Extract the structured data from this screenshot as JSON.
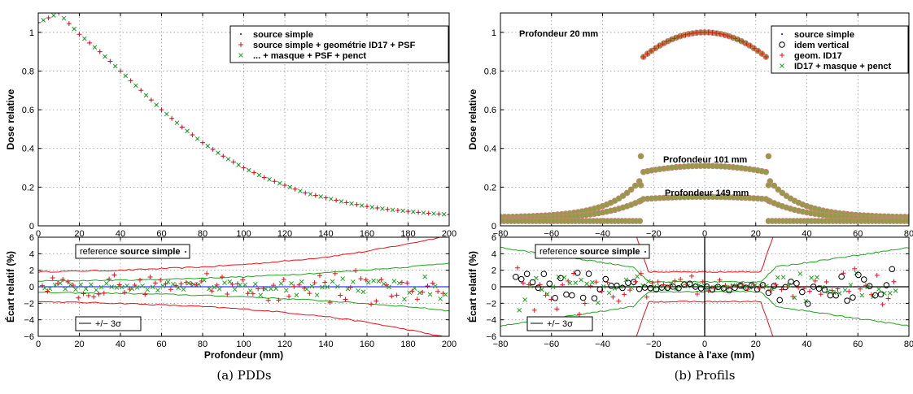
{
  "captions": {
    "a": "(a) PDDs",
    "b": "(b) Profils"
  },
  "colors": {
    "series1": "#0000ff",
    "series2": "#e8101a",
    "series3": "#21a321",
    "band_red": "#e8101a",
    "band_green": "#21a321",
    "open_circle": "#000000",
    "filled_circle_fill": "#8f9e40",
    "filled_circle_edge": "#d08080"
  },
  "chart_data": [
    {
      "id": "pdd-top",
      "type": "scatter",
      "xlabel": "",
      "ylabel": "Dose relative",
      "xlim": [
        0,
        200
      ],
      "ylim": [
        0,
        1.1
      ],
      "xticks": [
        "0",
        "20",
        "40",
        "60",
        "80",
        "100",
        "120",
        "140",
        "160",
        "180",
        "200"
      ],
      "yticks": [
        "0",
        "0.2",
        "0.4",
        "0.6",
        "0.8",
        "1"
      ],
      "grid": true,
      "legend_position": "top-right",
      "legend": [
        "source simple",
        "source simple + geométrie ID17 + PSF",
        "... + masque + PSF + penct"
      ],
      "pdd_points": [
        [
          0,
          1.05
        ],
        [
          10,
          1.1
        ],
        [
          20,
          0.99
        ],
        [
          30,
          0.9
        ],
        [
          40,
          0.8
        ],
        [
          50,
          0.7
        ],
        [
          60,
          0.6
        ],
        [
          70,
          0.51
        ],
        [
          80,
          0.43
        ],
        [
          90,
          0.36
        ],
        [
          100,
          0.3
        ],
        [
          110,
          0.25
        ],
        [
          120,
          0.21
        ],
        [
          130,
          0.17
        ],
        [
          140,
          0.145
        ],
        [
          150,
          0.12
        ],
        [
          160,
          0.1
        ],
        [
          170,
          0.085
        ],
        [
          180,
          0.075
        ],
        [
          190,
          0.065
        ],
        [
          200,
          0.058
        ]
      ]
    },
    {
      "id": "pdd-bottom",
      "type": "scatter",
      "xlabel": "Profondeur (mm)",
      "ylabel": "Écart relatif (%)",
      "xlim": [
        0,
        200
      ],
      "ylim": [
        -6,
        6
      ],
      "xticks": [
        "0",
        "20",
        "40",
        "60",
        "80",
        "100",
        "120",
        "140",
        "160",
        "180",
        "200"
      ],
      "yticks": [
        "−6",
        "−4",
        "−2",
        "0",
        "2",
        "4",
        "6"
      ],
      "grid": true,
      "reference_label_prefix": "reference",
      "reference_label_bold": "source simple",
      "sigma_label": "+/− 3σ",
      "red_band": [
        [
          0,
          1.8
        ],
        [
          20,
          1.9
        ],
        [
          40,
          2.0
        ],
        [
          60,
          2.2
        ],
        [
          80,
          2.4
        ],
        [
          100,
          2.7
        ],
        [
          120,
          3.1
        ],
        [
          140,
          3.6
        ],
        [
          160,
          4.3
        ],
        [
          180,
          5.2
        ],
        [
          200,
          6.2
        ]
      ],
      "green_band": [
        [
          0,
          0.7
        ],
        [
          20,
          0.75
        ],
        [
          40,
          0.8
        ],
        [
          60,
          0.9
        ],
        [
          80,
          1.05
        ],
        [
          100,
          1.2
        ],
        [
          120,
          1.45
        ],
        [
          140,
          1.7
        ],
        [
          160,
          2.05
        ],
        [
          180,
          2.4
        ],
        [
          200,
          2.9
        ]
      ]
    },
    {
      "id": "profils-top",
      "type": "scatter",
      "xlabel": "",
      "ylabel": "Dose relative",
      "xlim": [
        -80,
        80
      ],
      "ylim": [
        0,
        1.1
      ],
      "xticks": [
        "−80",
        "−60",
        "−40",
        "−20",
        "0",
        "20",
        "40",
        "60",
        "80"
      ],
      "yticks": [
        "0",
        "0.2",
        "0.4",
        "0.6",
        "0.8",
        "1"
      ],
      "grid": true,
      "legend_position": "top-right",
      "legend": [
        "source simple",
        "idem vertical",
        "geom. ID17",
        "ID17 + masque + penct"
      ],
      "annotations": [
        "Profondeur 20 mm",
        "Profondeur 101 mm",
        "Profondeur 149 mm"
      ]
    },
    {
      "id": "profils-bottom",
      "type": "scatter",
      "xlabel": "Distance à l'axe (mm)",
      "ylabel": "Écart relatif (%)",
      "xlim": [
        -80,
        80
      ],
      "ylim": [
        -6,
        6
      ],
      "xticks": [
        "−80",
        "−60",
        "−40",
        "−20",
        "0",
        "20",
        "40",
        "60",
        "80"
      ],
      "yticks": [
        "−6",
        "−4",
        "−2",
        "0",
        "2",
        "4",
        "6"
      ],
      "grid": true,
      "reference_label_prefix": "reference",
      "reference_label_bold": "source simple",
      "sigma_label": "+/− 3σ"
    }
  ]
}
